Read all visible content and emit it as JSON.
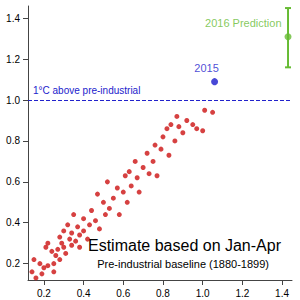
{
  "chart_data": {
    "type": "scatter",
    "title": "Estimate based on Jan-Apr",
    "subtitle": "Pre-industrial baseline (1880-1899)",
    "xlim": [
      0.12,
      1.45
    ],
    "ylim": [
      0.12,
      1.46
    ],
    "xticks": [
      0.2,
      0.4,
      0.6,
      0.8,
      {
        "value": 1,
        "label": "1.0"
      },
      1.2,
      1.4
    ],
    "yticks": [
      0.2,
      0.4,
      0.6,
      0.8,
      {
        "value": 1,
        "label": "1.0"
      },
      1.2,
      1.4
    ],
    "grid": false,
    "hline": {
      "value": 1,
      "label": "1°C above pre-industrial",
      "color": "#2222cc",
      "line_style": "dashed"
    },
    "series": [
      {
        "color": "#cc1111",
        "marker": "circle",
        "x": [
          0.14,
          0.15,
          0.16,
          0.18,
          0.19,
          0.2,
          0.21,
          0.22,
          0.22,
          0.24,
          0.25,
          0.25,
          0.26,
          0.27,
          0.28,
          0.28,
          0.29,
          0.3,
          0.3,
          0.31,
          0.32,
          0.33,
          0.34,
          0.34,
          0.35,
          0.36,
          0.37,
          0.38,
          0.38,
          0.4,
          0.4,
          0.42,
          0.43,
          0.44,
          0.46,
          0.47,
          0.48,
          0.5,
          0.51,
          0.52,
          0.53,
          0.55,
          0.57,
          0.58,
          0.6,
          0.61,
          0.62,
          0.63,
          0.64,
          0.66,
          0.67,
          0.68,
          0.7,
          0.72,
          0.73,
          0.75,
          0.76,
          0.77,
          0.79,
          0.8,
          0.82,
          0.83,
          0.84,
          0.86,
          0.87,
          0.88,
          0.9,
          0.92,
          0.95,
          0.97,
          1.0,
          1.01,
          1.05
        ],
        "values": [
          0.16,
          0.22,
          0.13,
          0.2,
          0.15,
          0.18,
          0.28,
          0.3,
          0.19,
          0.26,
          0.2,
          0.16,
          0.24,
          0.27,
          0.22,
          0.33,
          0.3,
          0.28,
          0.36,
          0.25,
          0.39,
          0.32,
          0.29,
          0.35,
          0.44,
          0.31,
          0.38,
          0.34,
          0.28,
          0.42,
          0.36,
          0.32,
          0.39,
          0.46,
          0.41,
          0.54,
          0.37,
          0.5,
          0.44,
          0.6,
          0.47,
          0.52,
          0.57,
          0.44,
          0.55,
          0.63,
          0.5,
          0.65,
          0.58,
          0.7,
          0.62,
          0.55,
          0.67,
          0.74,
          0.64,
          0.7,
          0.78,
          0.63,
          0.76,
          0.82,
          0.86,
          0.73,
          0.88,
          0.8,
          0.92,
          0.87,
          0.84,
          0.9,
          0.88,
          0.86,
          0.85,
          0.95,
          0.94
        ]
      },
      {
        "name": "2015",
        "color": "#1a1acc",
        "marker": "circle",
        "x": [
          1.06
        ],
        "values": [
          1.09
        ]
      },
      {
        "name": "2016 Prediction",
        "color": "#66bb33",
        "marker": "circle",
        "x": [
          1.43
        ],
        "values": [
          1.31
        ],
        "lower": [
          1.16
        ],
        "upper": [
          1.45
        ]
      }
    ]
  }
}
